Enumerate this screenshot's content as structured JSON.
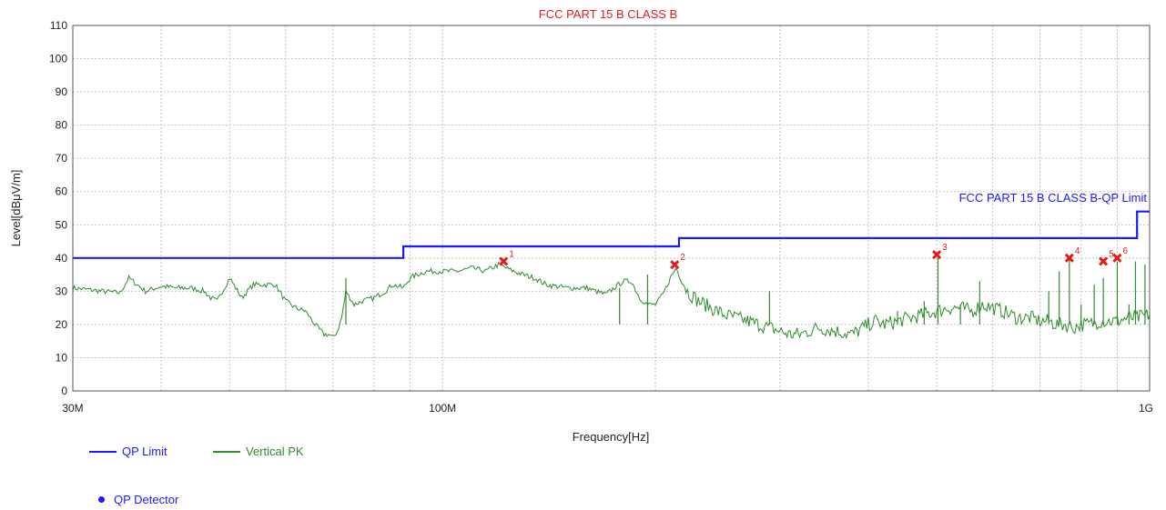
{
  "chart_data": {
    "type": "line",
    "title": "FCC PART 15 B CLASS B",
    "xlabel": "Frequency[Hz]",
    "ylabel": "Level[dBμV/m]",
    "x_scale": "log",
    "xlim": [
      30,
      1000
    ],
    "ylim": [
      0,
      110
    ],
    "yticks": [
      0,
      10,
      20,
      30,
      40,
      50,
      60,
      70,
      80,
      90,
      100,
      110
    ],
    "xtick_labels": [
      {
        "x": 30,
        "label": "30M"
      },
      {
        "x": 100,
        "label": "100M"
      },
      {
        "x": 1000,
        "label": "1G"
      }
    ],
    "x_gridlines": [
      40,
      50,
      60,
      70,
      80,
      90,
      100,
      200,
      300,
      400,
      500,
      600,
      700,
      800,
      900
    ],
    "grid": true,
    "limit_label": "FCC PART 15 B CLASS B-QP Limit",
    "series": [
      {
        "name": "QP Limit",
        "color": "#1a1aff",
        "x": [
          30,
          88,
          88,
          216,
          216,
          960,
          960,
          1000
        ],
        "y": [
          40,
          40,
          43.5,
          43.5,
          46,
          46,
          54,
          54
        ]
      },
      {
        "name": "Vertical PK",
        "color": "#2e8b2e",
        "x": [
          30,
          33,
          35,
          36,
          38,
          40,
          42,
          44,
          46,
          47,
          48,
          50,
          52,
          54,
          56,
          58,
          60,
          62,
          64,
          66,
          68,
          69,
          70,
          71,
          72,
          73,
          75,
          77,
          80,
          83,
          85,
          88,
          90,
          92,
          95,
          100,
          105,
          110,
          115,
          120,
          123,
          126,
          130,
          135,
          140,
          150,
          160,
          170,
          180,
          185,
          190,
          195,
          200,
          205,
          210,
          214,
          218,
          222,
          230,
          240,
          250,
          260,
          270,
          280,
          290,
          300,
          310,
          320,
          330,
          340,
          360,
          380,
          400,
          410,
          420,
          440,
          460,
          480,
          500,
          520,
          540,
          560,
          580,
          600,
          620,
          650,
          680,
          700,
          720,
          740,
          760,
          780,
          800,
          820,
          850,
          880,
          900,
          930,
          960,
          1000
        ],
        "y": [
          31,
          30,
          29.5,
          34,
          30,
          31.5,
          31,
          31,
          30,
          28,
          27,
          34,
          28,
          32,
          32,
          32,
          27,
          25,
          24,
          20,
          17,
          17,
          16,
          18,
          22,
          30,
          26,
          27,
          28,
          30,
          32,
          31,
          34,
          35,
          36,
          36,
          36,
          37,
          36,
          38,
          37,
          36,
          35,
          34,
          32,
          31,
          31,
          29,
          33,
          33,
          28,
          26,
          26,
          29,
          34,
          37,
          33,
          30,
          27,
          25,
          23,
          22,
          21,
          20,
          19,
          18,
          17,
          17,
          18,
          19,
          18,
          17,
          20,
          21,
          20,
          21,
          22,
          23,
          24,
          25,
          25,
          24,
          26,
          25,
          24,
          22,
          22,
          21,
          21,
          20,
          20,
          19,
          20,
          20,
          21,
          21,
          21,
          22,
          22,
          23
        ]
      }
    ],
    "spikes": [
      {
        "x": 73,
        "y": 34
      },
      {
        "x": 178,
        "y": 31
      },
      {
        "x": 195,
        "y": 35
      },
      {
        "x": 290,
        "y": 30
      },
      {
        "x": 440,
        "y": 24
      },
      {
        "x": 480,
        "y": 27
      },
      {
        "x": 502,
        "y": 41
      },
      {
        "x": 540,
        "y": 26
      },
      {
        "x": 575,
        "y": 33
      },
      {
        "x": 720,
        "y": 30
      },
      {
        "x": 745,
        "y": 36
      },
      {
        "x": 770,
        "y": 40
      },
      {
        "x": 800,
        "y": 26
      },
      {
        "x": 835,
        "y": 32
      },
      {
        "x": 860,
        "y": 34
      },
      {
        "x": 900,
        "y": 39
      },
      {
        "x": 935,
        "y": 26
      },
      {
        "x": 955,
        "y": 39
      },
      {
        "x": 985,
        "y": 38
      }
    ],
    "markers": [
      {
        "label": "1",
        "x": 122,
        "y": 39
      },
      {
        "label": "2",
        "x": 213,
        "y": 38
      },
      {
        "label": "3",
        "x": 500,
        "y": 41
      },
      {
        "label": "4",
        "x": 770,
        "y": 40
      },
      {
        "label": "5",
        "x": 860,
        "y": 39
      },
      {
        "label": "6",
        "x": 900,
        "y": 40
      }
    ],
    "marker_color": "#e61a1a",
    "title_color": "#e61a1a",
    "legend": [
      {
        "name": "QP Limit",
        "color": "#1a1aff",
        "kind": "line"
      },
      {
        "name": "Vertical PK",
        "color": "#2e8b2e",
        "kind": "line"
      },
      {
        "name": "QP Detector",
        "color": "#1a1aff",
        "kind": "dot"
      }
    ],
    "legend_position": "bottom-left"
  }
}
